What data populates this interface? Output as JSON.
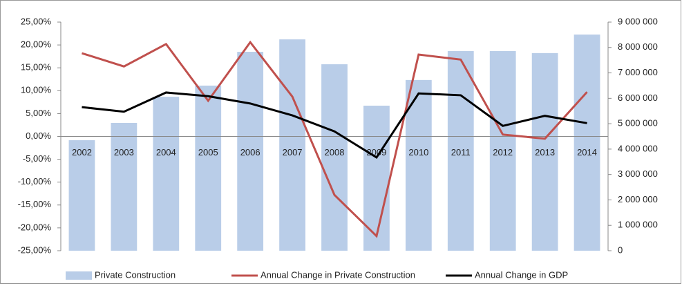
{
  "chart_data": {
    "type": "bar-line",
    "categories": [
      "2002",
      "2003",
      "2004",
      "2005",
      "2006",
      "2007",
      "2008",
      "2009",
      "2010",
      "2011",
      "2012",
      "2013",
      "2014"
    ],
    "series": [
      {
        "name": "Private Construction",
        "color": "#b9cde8",
        "type": "bar",
        "axis": "y2",
        "values": [
          4350000,
          5030000,
          6060000,
          6500000,
          7830000,
          8320000,
          7340000,
          5710000,
          6720000,
          7860000,
          7860000,
          7780000,
          8510000
        ]
      },
      {
        "name": "Annual Change in Private Construction",
        "color": "#c0504d",
        "type": "line",
        "axis": "y",
        "values": [
          18.2,
          15.3,
          20.2,
          7.8,
          20.6,
          8.7,
          -12.8,
          -21.8,
          17.9,
          16.8,
          0.4,
          -0.5,
          9.7
        ]
      },
      {
        "name": "Annual Change in GDP",
        "color": "#000000",
        "type": "line",
        "axis": "y",
        "values": [
          6.4,
          5.4,
          9.6,
          8.8,
          7.2,
          4.6,
          1.1,
          -4.6,
          9.4,
          9.0,
          2.3,
          4.5,
          2.9
        ]
      }
    ],
    "ylim": [
      -25,
      25
    ],
    "yticks": [
      {
        "value": -25,
        "label": "-25,00%"
      },
      {
        "value": -20,
        "label": "-20,00%"
      },
      {
        "value": -15,
        "label": "-15,00%"
      },
      {
        "value": -10,
        "label": "-10,00%"
      },
      {
        "value": -5,
        "label": "-5,00%"
      },
      {
        "value": 0,
        "label": "0,00%"
      },
      {
        "value": 5,
        "label": "5,00%"
      },
      {
        "value": 10,
        "label": "10,00%"
      },
      {
        "value": 15,
        "label": "15,00%"
      },
      {
        "value": 20,
        "label": "20,00%"
      },
      {
        "value": 25,
        "label": "25,00%"
      }
    ],
    "y2lim": [
      0,
      9000000
    ],
    "y2ticks": [
      0,
      {
        "value": 1000000,
        "label": "1 000 000"
      },
      {
        "value": 2000000,
        "label": "2 000 000"
      },
      {
        "value": 3000000,
        "label": "3 000 000"
      },
      {
        "value": 4000000,
        "label": "4 000 000"
      },
      {
        "value": 5000000,
        "label": "5 000 000"
      },
      {
        "value": 6000000,
        "label": "6 000 000"
      },
      {
        "value": 7000000,
        "label": "7 000 000"
      },
      {
        "value": 8000000,
        "label": "8 000 000"
      },
      {
        "value": 9000000,
        "label": "9 000 000"
      }
    ]
  }
}
